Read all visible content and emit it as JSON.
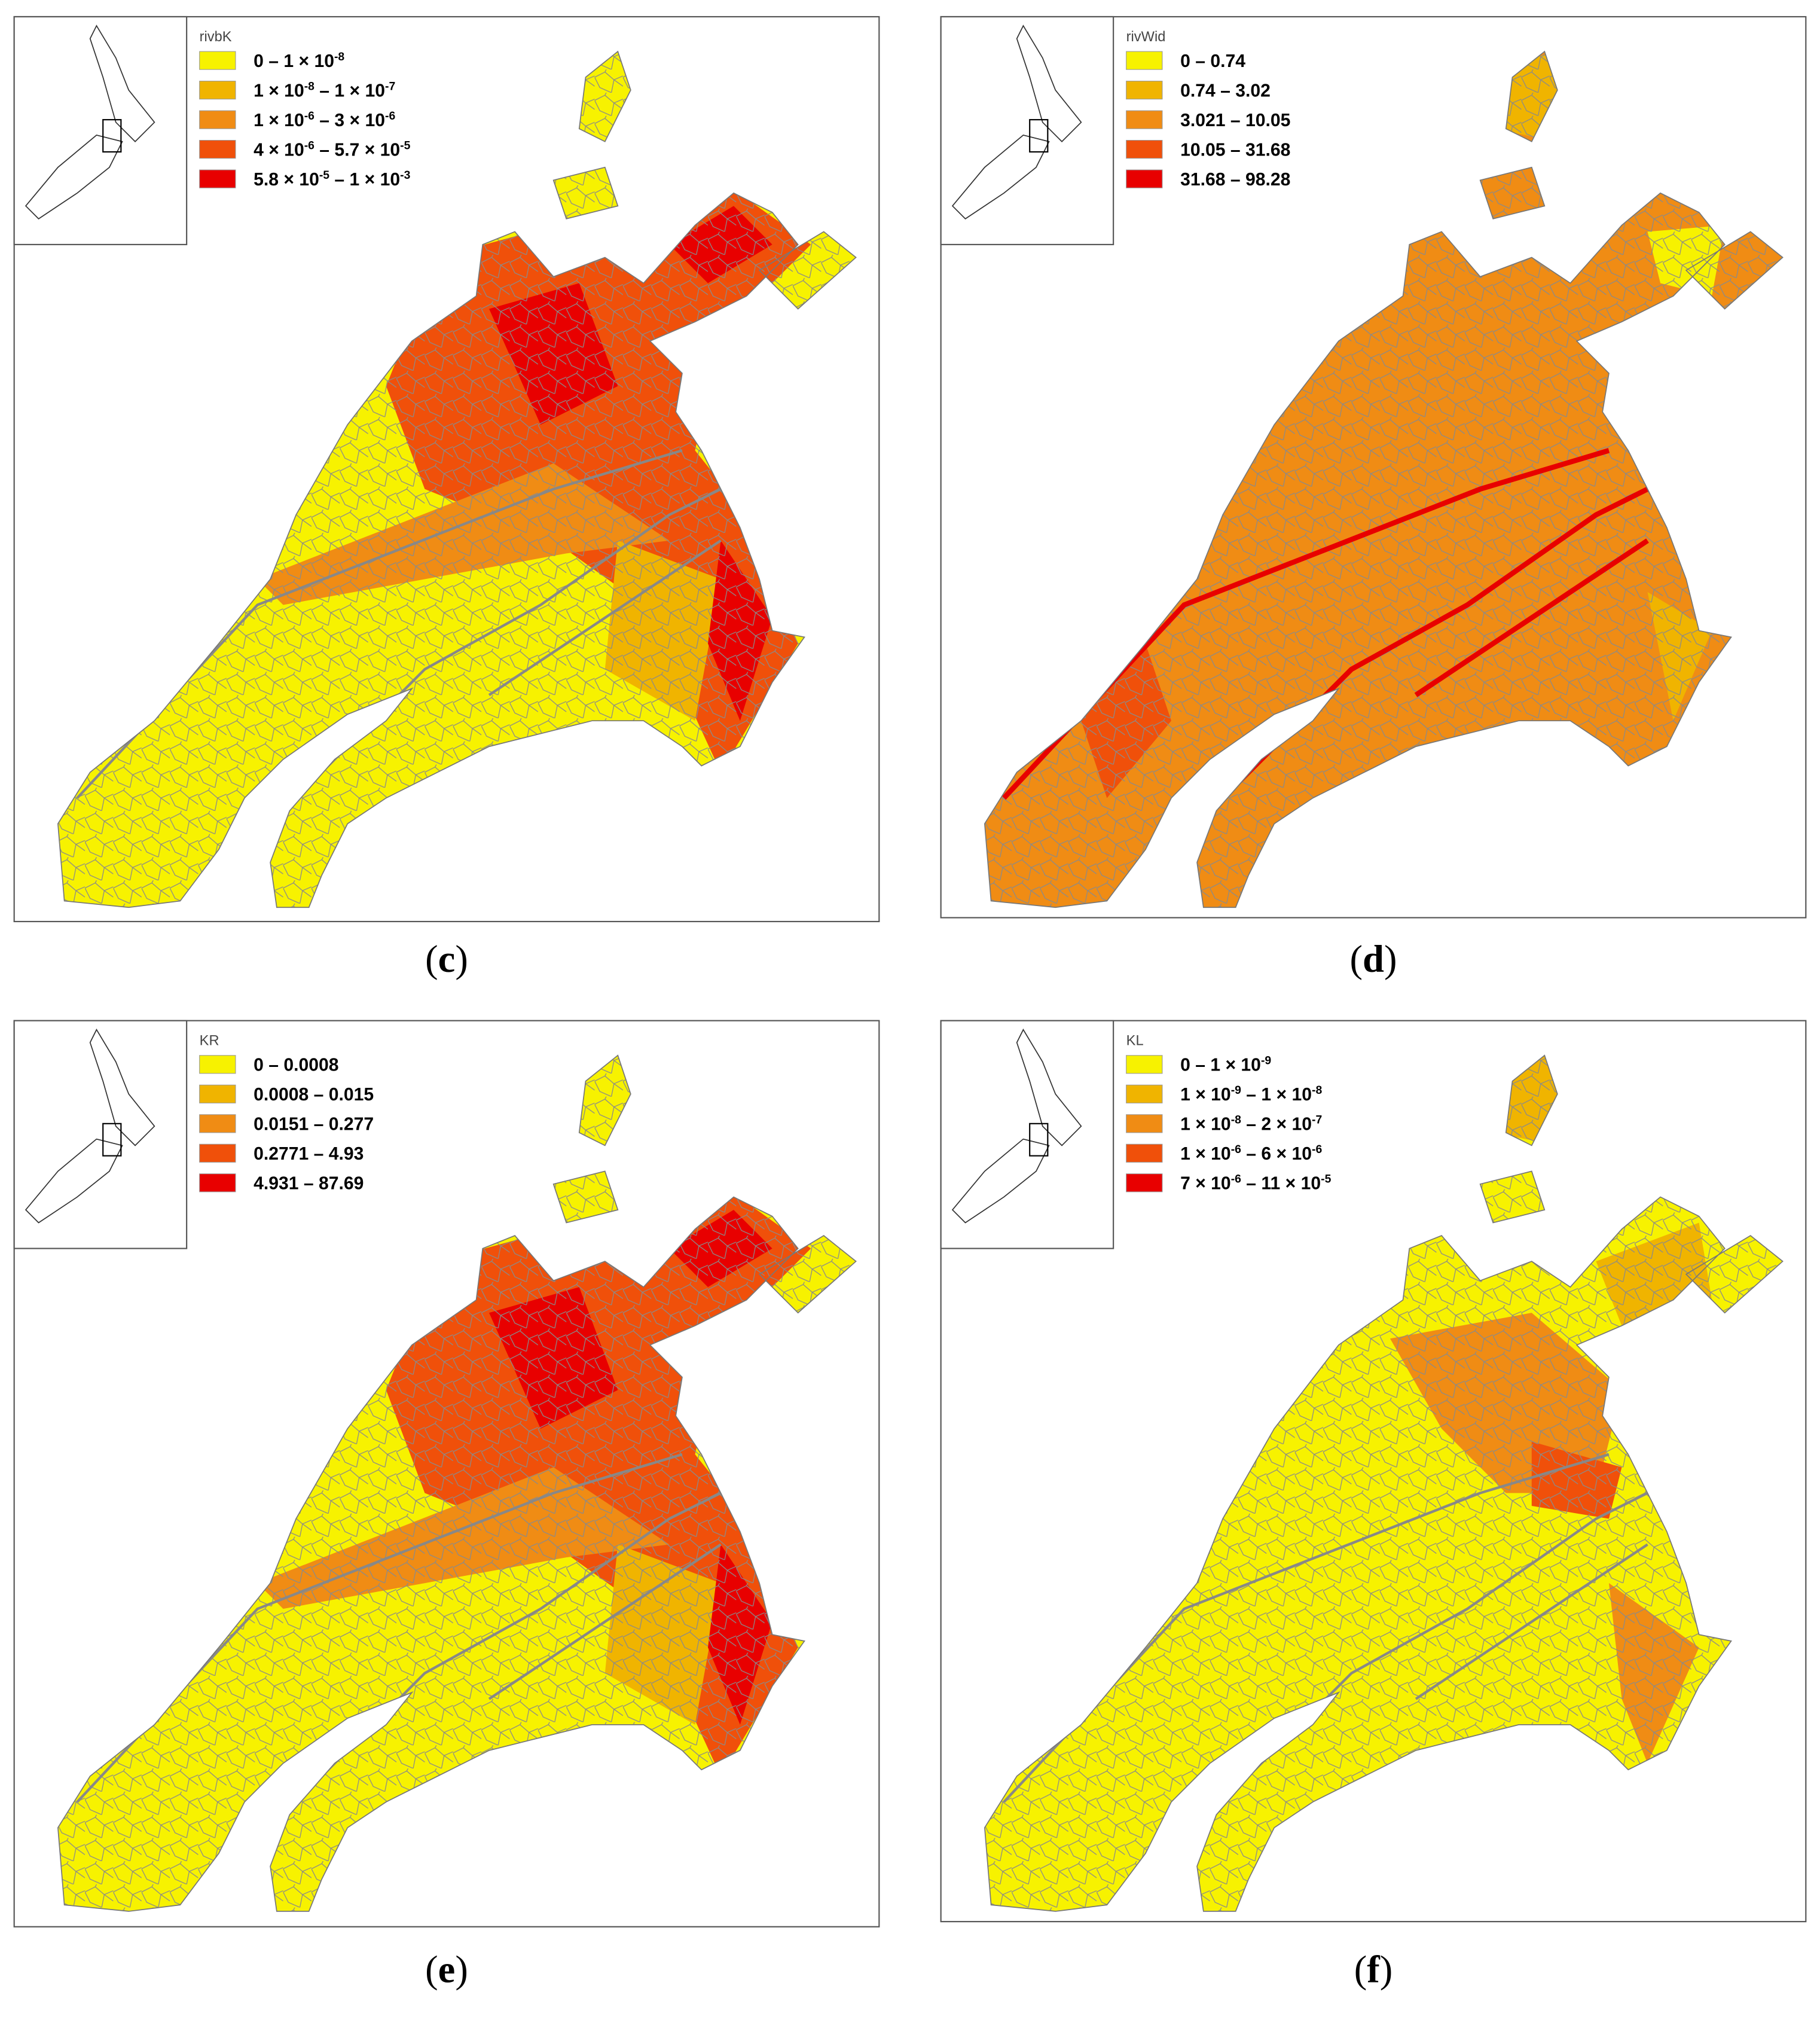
{
  "figure": {
    "panels": [
      {
        "label": [
          "(",
          "c",
          ")"
        ],
        "base": 0,
        "legend": {
          "title": "rivbK",
          "colors": [
            "#f7f200",
            "#f0b400",
            "#f08c14",
            "#f0500a",
            "#e80000"
          ],
          "entries": [
            [
              "0 – 1 × 10",
              {
                "sup": "-8"
              }
            ],
            [
              "1 × 10",
              {
                "sup": "-8"
              },
              " – 1 × 10",
              {
                "sup": "-7"
              }
            ],
            [
              "1 × 10",
              {
                "sup": "-6"
              },
              " – 3 × 10",
              {
                "sup": "-6"
              }
            ],
            [
              "4 × 10",
              {
                "sup": "-6"
              },
              " – 5.7 × 10",
              {
                "sup": "-5"
              }
            ],
            [
              "5.8 × 10",
              {
                "sup": "-5"
              },
              " – 1 × 10",
              {
                "sup": "-3"
              }
            ]
          ]
        }
      },
      {
        "label": [
          "(",
          "d",
          ")"
        ],
        "base": 2,
        "legend": {
          "title": "rivWid",
          "colors": [
            "#f7f200",
            "#f0b400",
            "#f08c14",
            "#f0500a",
            "#e80000"
          ],
          "entries": [
            [
              "0 – 0.74"
            ],
            [
              "0.74 – 3.02"
            ],
            [
              "3.021 – 10.05"
            ],
            [
              "10.05 – 31.68"
            ],
            [
              "31.68 – 98.28"
            ]
          ]
        }
      },
      {
        "label": [
          "(",
          "e",
          ")"
        ],
        "base": 0,
        "legend": {
          "title": "KR",
          "colors": [
            "#f7f200",
            "#f0b400",
            "#f08c14",
            "#f0500a",
            "#e80000"
          ],
          "entries": [
            [
              "0 – 0.0008"
            ],
            [
              "0.0008 – 0.015"
            ],
            [
              "0.0151 – 0.277"
            ],
            [
              "0.2771 – 4.93"
            ],
            [
              "4.931 – 87.69"
            ]
          ]
        }
      },
      {
        "label": [
          "(",
          "f",
          ")"
        ],
        "base": 0,
        "legend": {
          "title": "KL",
          "colors": [
            "#f7f200",
            "#f0b400",
            "#f08c14",
            "#f0500a",
            "#e80000"
          ],
          "entries": [
            [
              "0 – 1 × 10",
              {
                "sup": "-9"
              }
            ],
            [
              "1 × 10",
              {
                "sup": "-9"
              },
              " – 1 × 10",
              {
                "sup": "-8"
              }
            ],
            [
              "1 × 10",
              {
                "sup": "-8"
              },
              " – 2 × 10",
              {
                "sup": "-7"
              }
            ],
            [
              "1 × 10",
              {
                "sup": "-6"
              },
              " – 6 × 10",
              {
                "sup": "-6"
              }
            ],
            [
              "7 × 10",
              {
                "sup": "-6"
              },
              " – 11 × 10",
              {
                "sup": "-5"
              }
            ]
          ]
        }
      }
    ]
  }
}
